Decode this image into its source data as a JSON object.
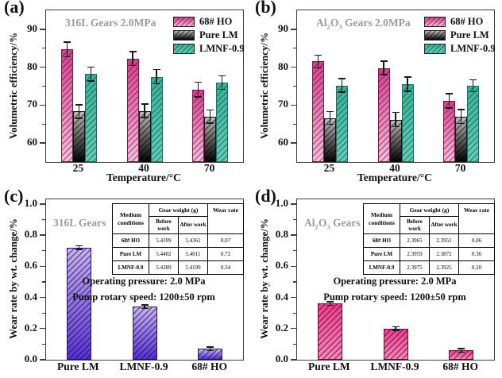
{
  "chart_data": [
    {
      "id": "a",
      "panel_label": "(a)",
      "type": "bar",
      "layout": "grouped",
      "inplot_title": "316L Gears  2.0MPa",
      "ylabel": "Volumetric efficiency/%",
      "xlabel": "Temperature/°C",
      "categories": [
        "25",
        "40",
        "70"
      ],
      "series": [
        {
          "name": "68# HO",
          "values": [
            84.7,
            82.3,
            74.1
          ],
          "errors": [
            1.9,
            1.8,
            1.9
          ],
          "fill_top": "#d6418d",
          "fill_bottom": "#f6bedb",
          "hatch": "rgba(95,8,60,0.5)",
          "border": "#7a1947"
        },
        {
          "name": "Pure LM",
          "values": [
            68.3,
            68.5,
            67.0
          ],
          "errors": [
            1.8,
            1.8,
            1.7
          ],
          "fill_top": "#bdbdbd",
          "fill_bottom": "#030303",
          "hatch": "rgba(0,0,0,0.5)",
          "border": "#111111"
        },
        {
          "name": "LMNF-0.9",
          "values": [
            78.2,
            77.5,
            75.9
          ],
          "errors": [
            1.8,
            1.9,
            1.8
          ],
          "fill_top": "#39b29a",
          "fill_bottom": "#63cdb7",
          "hatch": "rgba(8,70,58,0.5)",
          "border": "#1f6f5f"
        }
      ],
      "ylim": [
        55,
        95
      ],
      "yticks": [
        60,
        70,
        80,
        90
      ],
      "minor_tick_step": 5,
      "ytick_decimals": 0,
      "legend_position": "top-right"
    },
    {
      "id": "b",
      "panel_label": "(b)",
      "type": "bar",
      "layout": "grouped",
      "inplot_title": "Al_2_O_3_ Gears  2.0MPa",
      "ylabel": "Volumetric efficiency/%",
      "xlabel": "Temperature/°C",
      "categories": [
        "25",
        "40",
        "70"
      ],
      "series": [
        {
          "name": "68# HO",
          "values": [
            81.5,
            79.8,
            71.1
          ],
          "errors": [
            1.7,
            1.8,
            1.9
          ],
          "fill_top": "#d6418d",
          "fill_bottom": "#f6bedb",
          "hatch": "rgba(95,8,60,0.5)",
          "border": "#7a1947"
        },
        {
          "name": "Pure LM",
          "values": [
            66.6,
            66.2,
            67.0
          ],
          "errors": [
            1.7,
            1.9,
            1.8
          ],
          "fill_top": "#bdbdbd",
          "fill_bottom": "#030303",
          "hatch": "rgba(0,0,0,0.5)",
          "border": "#111111"
        },
        {
          "name": "LMNF-0.9",
          "values": [
            75.2,
            75.5,
            75.1
          ],
          "errors": [
            1.8,
            1.9,
            1.6
          ],
          "fill_top": "#39b29a",
          "fill_bottom": "#63cdb7",
          "hatch": "rgba(8,70,58,0.5)",
          "border": "#1f6f5f"
        }
      ],
      "ylim": [
        55,
        95
      ],
      "yticks": [
        60,
        70,
        80,
        90
      ],
      "minor_tick_step": 5,
      "ytick_decimals": 0,
      "legend_position": "top-right"
    },
    {
      "id": "c",
      "panel_label": "(c)",
      "type": "bar",
      "layout": "single",
      "inplot_title": "316L Gears",
      "ylabel": "Wear rate by wt. change/%",
      "xlabel": "",
      "categories": [
        "Pure LM",
        "LMNF-0.9",
        "68# HO"
      ],
      "series": [
        {
          "name": "wear rate",
          "values": [
            0.72,
            0.34,
            0.07
          ],
          "errors": [
            0.012,
            0.012,
            0.012
          ],
          "fill_top": "#c8b4f1",
          "fill_bottom": "#5531d2",
          "hatch": "rgba(15,8,55,0.55)",
          "border": "#241470"
        }
      ],
      "ylim": [
        0,
        1.03
      ],
      "yticks": [
        0,
        0.2,
        0.4,
        0.6,
        0.8,
        1.0
      ],
      "minor_tick_step": 0.1,
      "ytick_decimals": 1,
      "inset_table": {
        "header_medium": "Medium conditions",
        "header_gear_weight": "Gear weight (g)",
        "header_before": "Before work",
        "header_after": "After work",
        "header_wear_rate": "Wear rate",
        "rows": [
          {
            "medium": "68# HO",
            "before": "5.4399",
            "after": "5.4361",
            "wear_rate": "0.07"
          },
          {
            "medium": "Pure LM",
            "before": "5.4402",
            "after": "5.4011",
            "wear_rate": "0.72"
          },
          {
            "medium": "LMNF-0.9",
            "before": "5.4389",
            "after": "5.4199",
            "wear_rate": "0.34"
          }
        ]
      },
      "annotations": [
        "Operating pressure: 2.0 MPa",
        "Pump rotary speed: 1200±50 rpm"
      ]
    },
    {
      "id": "d",
      "panel_label": "(d)",
      "type": "bar",
      "layout": "single",
      "inplot_title": "Al_2_O_3_ Gears",
      "ylabel": "Wear rate by wt. change/%",
      "xlabel": "",
      "categories": [
        "Pure LM",
        "LMNF-0.9",
        "68# HO"
      ],
      "series": [
        {
          "name": "wear rate",
          "values": [
            0.36,
            0.2,
            0.06
          ],
          "errors": [
            0.012,
            0.012,
            0.012
          ],
          "fill_top": "#ee3f8f",
          "fill_bottom": "#fa86ba",
          "hatch": "rgba(60,0,30,0.55)",
          "border": "#70053a"
        }
      ],
      "ylim": [
        0,
        1.03
      ],
      "yticks": [
        0,
        0.2,
        0.4,
        0.6,
        0.8,
        1.0
      ],
      "minor_tick_step": 0.1,
      "ytick_decimals": 1,
      "inset_table": {
        "header_medium": "Medium conditions",
        "header_gear_weight": "Gear weight (g)",
        "header_before": "Before work",
        "header_after": "After work",
        "header_wear_rate": "Wear rate",
        "rows": [
          {
            "medium": "68# HO",
            "before": "2.3965",
            "after": "2.3951",
            "wear_rate": "0.06"
          },
          {
            "medium": "Pure LM",
            "before": "2.3959",
            "after": "2.3872",
            "wear_rate": "0.36"
          },
          {
            "medium": "LMNF-0.9",
            "before": "2.3975",
            "after": "2.3925",
            "wear_rate": "0.20"
          }
        ]
      },
      "annotations": [
        "Operating pressure: 2.0 MPa",
        "Pump rotary speed: 1200±50 rpm"
      ]
    }
  ]
}
